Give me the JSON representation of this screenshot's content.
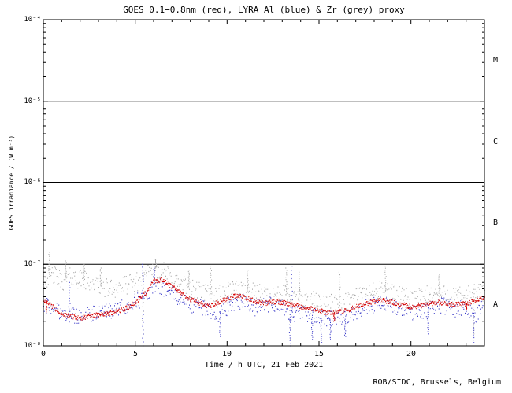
{
  "credit": "ROB/SIDC, Brussels, Belgium",
  "axes": {
    "y_tick_labels": [
      "10⁻⁴",
      "10⁻⁵",
      "10⁻⁶",
      "10⁻⁷",
      "10⁻⁸"
    ],
    "x_tick_labels": [
      "0",
      "5",
      "10",
      "15",
      "20"
    ]
  },
  "chart_data": {
    "type": "scatter",
    "title": "GOES 0.1−0.8nm (red), LYRA Al (blue) & Zr (grey) proxy",
    "xlabel": "Time / h UTC, 21 Feb 2021",
    "ylabel": "GOES irradiance / (W m⁻²)",
    "xlim": [
      0,
      24
    ],
    "ylim": [
      1e-08,
      0.0001
    ],
    "yscale": "log",
    "grid": false,
    "hlines": [
      1e-05,
      1e-06,
      1e-07
    ],
    "flare_class_bands": [
      {
        "label": "M",
        "range": [
          1e-05,
          0.0001
        ]
      },
      {
        "label": "C",
        "range": [
          1e-06,
          1e-05
        ]
      },
      {
        "label": "B",
        "range": [
          1e-07,
          1e-06
        ]
      },
      {
        "label": "A",
        "range": [
          1e-08,
          1e-07
        ]
      }
    ],
    "series": [
      {
        "name": "LYRA Zr proxy",
        "color": "#a9a9a9",
        "noise_dex": 0.12,
        "density": 28,
        "x": [
          0,
          0.5,
          1,
          1.5,
          2,
          2.5,
          3,
          3.5,
          4,
          4.5,
          5,
          5.5,
          6,
          6.5,
          7,
          7.5,
          8,
          8.5,
          9,
          9.5,
          10,
          10.5,
          11,
          11.5,
          12,
          12.5,
          13,
          13.5,
          14,
          14.5,
          15,
          15.5,
          16,
          16.5,
          17,
          17.5,
          18,
          18.5,
          19,
          19.5,
          20,
          20.5,
          21,
          21.5,
          22,
          22.5,
          23,
          23.5,
          24
        ],
        "y": [
          6.5e-08,
          7.5e-08,
          6.2e-08,
          7e-08,
          6.5e-08,
          6e-08,
          5.5e-08,
          5e-08,
          5.2e-08,
          5.6e-08,
          6e-08,
          6.6e-08,
          9.2e-08,
          8.2e-08,
          6.6e-08,
          5.6e-08,
          5e-08,
          4.6e-08,
          4.4e-08,
          4.2e-08,
          4.6e-08,
          5e-08,
          4.8e-08,
          4.4e-08,
          4.2e-08,
          4.4e-08,
          4.2e-08,
          4e-08,
          3.8e-08,
          3.6e-08,
          3.4e-08,
          3.2e-08,
          3.4e-08,
          3.6e-08,
          4e-08,
          4.4e-08,
          4.6e-08,
          4.8e-08,
          4.4e-08,
          4e-08,
          3.8e-08,
          4e-08,
          4.2e-08,
          4.4e-08,
          4.2e-08,
          4e-08,
          4.2e-08,
          4.4e-08,
          4.6e-08
        ],
        "spikes": [
          [
            0.3,
            1.4e-07
          ],
          [
            1.2,
            1.1e-07
          ],
          [
            2.2,
            1e-07
          ],
          [
            3.1,
            9e-08
          ],
          [
            5.4,
            1.4e-08
          ],
          [
            6.1,
            1.15e-07
          ],
          [
            7.9,
            8.5e-08
          ],
          [
            9.1,
            9.5e-08
          ],
          [
            11.1,
            8.5e-08
          ],
          [
            13.2,
            9e-08
          ],
          [
            13.4,
            1.2e-08
          ],
          [
            13.9,
            8e-08
          ],
          [
            16.1,
            8e-08
          ],
          [
            18.6,
            9.5e-08
          ],
          [
            21.5,
            7.5e-08
          ],
          [
            23.4,
            1.4e-08
          ]
        ]
      },
      {
        "name": "LYRA Al proxy",
        "color": "#3a3ac8",
        "noise_dex": 0.1,
        "density": 28,
        "x": [
          0,
          0.5,
          1,
          1.5,
          2,
          2.5,
          3,
          3.5,
          4,
          4.5,
          5,
          5.5,
          6,
          6.5,
          7,
          7.5,
          8,
          8.5,
          9,
          9.5,
          10,
          10.5,
          11,
          11.5,
          12,
          12.5,
          13,
          13.5,
          14,
          14.5,
          15,
          15.5,
          16,
          16.5,
          17,
          17.5,
          18,
          18.5,
          19,
          19.5,
          20,
          20.5,
          21,
          21.5,
          22,
          22.5,
          23,
          23.5,
          24
        ],
        "y": [
          3.2e-08,
          2.9e-08,
          2.6e-08,
          2.4e-08,
          2.3e-08,
          2.4e-08,
          2.5e-08,
          2.6e-08,
          2.8e-08,
          3e-08,
          3.5e-08,
          3.8e-08,
          5.6e-08,
          5.2e-08,
          4.2e-08,
          3.6e-08,
          3.2e-08,
          3e-08,
          2.8e-08,
          2.4e-08,
          3e-08,
          3.6e-08,
          3.4e-08,
          2.9e-08,
          3.1e-08,
          3.3e-08,
          3e-08,
          2.3e-08,
          2.6e-08,
          2.4e-08,
          2.2e-08,
          2.1e-08,
          2.2e-08,
          2.1e-08,
          2.6e-08,
          3e-08,
          3.2e-08,
          3.4e-08,
          3e-08,
          2.7e-08,
          2.4e-08,
          2.6e-08,
          3e-08,
          3.2e-08,
          3e-08,
          2.8e-08,
          3e-08,
          2.4e-08,
          3.4e-08
        ],
        "spikes": [
          [
            1.4,
            6e-08
          ],
          [
            5.4,
            1e-08
          ],
          [
            5.4,
            1e-07
          ],
          [
            6.0,
            9e-08
          ],
          [
            9.6,
            1.3e-08
          ],
          [
            13.4,
            1e-08
          ],
          [
            13.5,
            9.5e-08
          ],
          [
            14.6,
            1.2e-08
          ],
          [
            15.1,
            1.1e-08
          ],
          [
            15.6,
            1.2e-08
          ],
          [
            16.4,
            1.3e-08
          ],
          [
            20.9,
            1.4e-08
          ],
          [
            23.4,
            1.1e-08
          ]
        ]
      },
      {
        "name": "GOES 0.1−0.8nm",
        "color": "#d40000",
        "noise_dex": 0.03,
        "density": 45,
        "x": [
          0,
          0.5,
          1,
          1.5,
          2,
          2.5,
          3,
          3.5,
          4,
          4.5,
          5,
          5.5,
          6,
          6.5,
          7,
          7.5,
          8,
          8.5,
          9,
          9.5,
          10,
          10.5,
          11,
          11.5,
          12,
          12.5,
          13,
          13.5,
          14,
          14.5,
          15,
          15.5,
          16,
          16.5,
          17,
          17.5,
          18,
          18.5,
          19,
          19.5,
          20,
          20.5,
          21,
          21.5,
          22,
          22.5,
          23,
          23.5,
          24
        ],
        "y": [
          3.6e-08,
          3e-08,
          2.5e-08,
          2.3e-08,
          2.2e-08,
          2.3e-08,
          2.4e-08,
          2.5e-08,
          2.6e-08,
          2.9e-08,
          3.4e-08,
          4.3e-08,
          6.2e-08,
          6.4e-08,
          5.3e-08,
          4.4e-08,
          3.7e-08,
          3.3e-08,
          3.1e-08,
          3.4e-08,
          3.8e-08,
          4.1e-08,
          3.9e-08,
          3.5e-08,
          3.3e-08,
          3.5e-08,
          3.4e-08,
          3.2e-08,
          3e-08,
          2.9e-08,
          2.7e-08,
          2.5e-08,
          2.6e-08,
          2.7e-08,
          3e-08,
          3.3e-08,
          3.5e-08,
          3.6e-08,
          3.4e-08,
          3.2e-08,
          3e-08,
          3.1e-08,
          3.3e-08,
          3.4e-08,
          3.3e-08,
          3.2e-08,
          3.3e-08,
          3.6e-08,
          4e-08
        ],
        "spikes": [
          [
            0.15,
            2.6e-08
          ],
          [
            15.8,
            2e-08
          ],
          [
            23.0,
            2.8e-08
          ]
        ]
      }
    ]
  }
}
